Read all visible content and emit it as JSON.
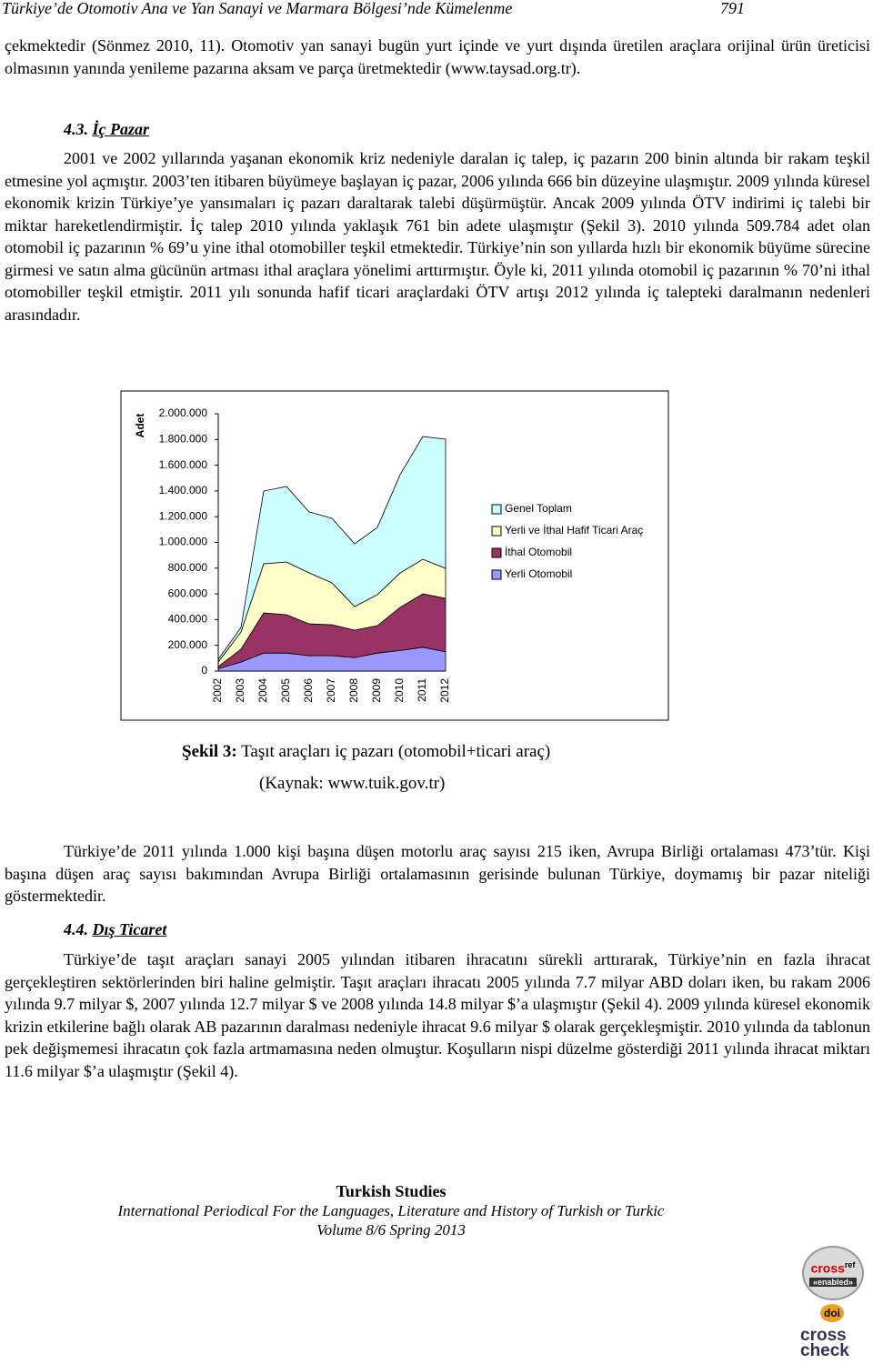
{
  "header": {
    "title": "Türkiye’de Otomotiv Ana ve Yan Sanayi ve Marmara Bölgesi’nde Kümelenme",
    "page": "791"
  },
  "intro": "çekmektedir (Sönmez 2010, 11). Otomotiv yan sanayi bugün yurt içinde ve yurt dışında üretilen araçlara orijinal ürün üreticisi olmasının yanında yenileme pazarına aksam ve parça üretmektedir (www.taysad.org.tr).",
  "section_43": {
    "number": "4.3.",
    "title": "İç Pazar",
    "paragraph": "2001 ve 2002 yıllarında yaşanan ekonomik kriz nedeniyle daralan iç talep, iç pazarın 200 binin altında bir rakam teşkil etmesine yol açmıştır. 2003’ten itibaren büyümeye başlayan iç pazar, 2006 yılında 666 bin düzeyine ulaşmıştır. 2009 yılında küresel ekonomik krizin Türkiye’ye yansımaları iç pazarı daraltarak talebi düşürmüştür. Ancak 2009 yılında ÖTV indirimi iç talebi bir miktar hareketlendirmiştir. İç talep 2010 yılında yaklaşık 761 bin adete ulaşmıştır (Şekil 3). 2010 yılında 509.784 adet olan otomobil iç pazarının % 69’u yine ithal otomobiller teşkil etmektedir. Türkiye’nin son yıllarda hızlı bir ekonomik büyüme sürecine girmesi ve satın alma gücünün artması ithal araçlara yönelimi arttırmıştır. Öyle ki, 2011 yılında otomobil iç pazarının % 70’ni ithal otomobiller teşkil etmiştir. 2011 yılı sonunda hafif ticari araçlardaki ÖTV artışı 2012 yılında iç talepteki daralmanın nedenleri arasındadır."
  },
  "chart_data": {
    "type": "stacked-area",
    "y_label": "Adet",
    "categories": [
      "2002",
      "2003",
      "2004",
      "2005",
      "2006",
      "2007",
      "2008",
      "2009",
      "2010",
      "2011",
      "2012"
    ],
    "series": [
      {
        "name": "Yerli Otomobil",
        "color": "#9999ff",
        "values": [
          20000,
          70000,
          140000,
          140000,
          120000,
          120000,
          105000,
          140000,
          160000,
          185000,
          150000
        ]
      },
      {
        "name": "İthal Otomobil",
        "color": "#993366",
        "values": [
          15000,
          100000,
          312000,
          298000,
          247000,
          240000,
          213000,
          213000,
          335000,
          415000,
          415000
        ]
      },
      {
        "name": "Yerli ve İthal Hafif Ticari Araç",
        "color": "#ffffcc",
        "values": [
          36000,
          134000,
          382000,
          410000,
          396000,
          326000,
          184000,
          241000,
          268000,
          269000,
          234000
        ]
      },
      {
        "name": "Genel Toplam",
        "color": "#ccffff",
        "values": [
          21000,
          35000,
          565000,
          587000,
          474000,
          501000,
          487000,
          523000,
          764000,
          954000,
          1003000
        ]
      }
    ],
    "ylim": [
      0,
      2000000
    ],
    "yticks": [
      0,
      {
        "value": 200000,
        "label": "200.000"
      },
      {
        "value": 400000,
        "label": "400.000"
      },
      {
        "value": 600000,
        "label": "600.000"
      },
      {
        "value": 800000,
        "label": "800.000"
      },
      {
        "value": 1000000,
        "label": "1.000.000"
      },
      {
        "value": 1200000,
        "label": "1.200.000"
      },
      {
        "value": 1400000,
        "label": "1.400.000"
      },
      {
        "value": 1600000,
        "label": "1.600.000"
      },
      {
        "value": 1800000,
        "label": "1.800.000"
      },
      {
        "value": 2000000,
        "label": "2.000.000"
      }
    ],
    "legend": "right"
  },
  "figure": {
    "label": "Şekil 3:",
    "caption": "Taşıt araçları iç pazarı (otomobil+ticari araç)",
    "source": "(Kaynak: www.tuik.gov.tr)"
  },
  "paragraph_2": "Türkiye’de 2011 yılında 1.000 kişi başına düşen motorlu araç sayısı 215 iken, Avrupa Birliği ortalaması 473’tür. Kişi başına düşen araç sayısı bakımından Avrupa Birliği ortalamasının gerisinde bulunan Türkiye, doymamış bir pazar niteliği göstermektedir.",
  "section_44": {
    "number": "4.4.",
    "title": "Dış Ticaret",
    "paragraph": "Türkiye’de taşıt araçları sanayi 2005 yılından itibaren ihracatını sürekli arttırarak, Türkiye’nin en fazla ihracat gerçekleştiren sektörlerinden biri haline gelmiştir. Taşıt araçları ihracatı 2005 yılında 7.7 milyar ABD doları iken, bu rakam 2006 yılında 9.7 milyar $, 2007 yılında 12.7 milyar $ ve 2008 yılında 14.8 milyar $’a ulaşmıştır (Şekil 4). 2009 yılında küresel ekonomik krizin etkilerine bağlı olarak AB pazarının daralması nedeniyle ihracat 9.6 milyar $ olarak gerçekleşmiştir. 2010 yılında da tablonun pek değişmemesi ihracatın çok fazla artmamasına neden olmuştur. Koşulların nispi düzelme gösterdiği 2011 yılında ihracat miktarı 11.6 milyar $’a ulaşmıştır (Şekil 4)."
  },
  "footer": {
    "journal": "Turkish Studies",
    "subtitle": "International Periodical For the Languages, Literature and History of Turkish or Turkic",
    "volume": "Volume 8/6 Spring 2013"
  },
  "badges": {
    "crossref": "cross",
    "ref": "ref",
    "enabled": "«enabled»",
    "doi": "doi",
    "crosscheck_1": "cross",
    "crosscheck_2": "check"
  }
}
